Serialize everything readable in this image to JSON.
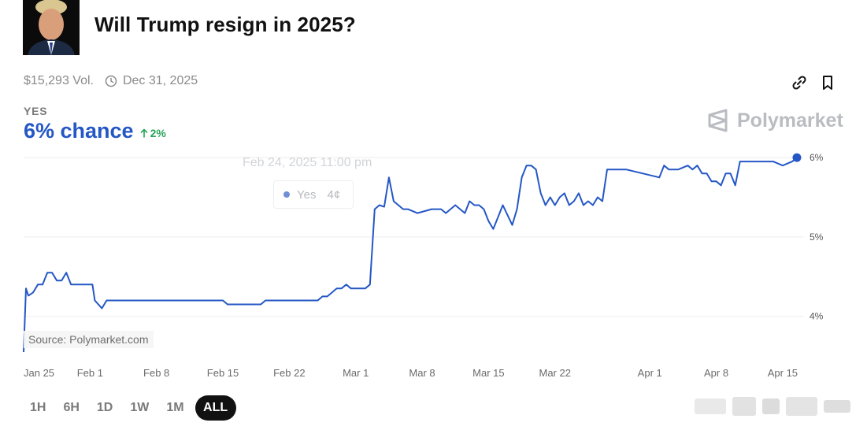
{
  "market": {
    "title": "Will Trump resign in 2025?",
    "volume": "$15,293 Vol.",
    "end_date": "Dec 31, 2025",
    "outcome_label": "YES",
    "chance": "6% chance",
    "change": "2%",
    "watermark": "Polymarket",
    "source": "Source: Polymarket.com"
  },
  "icons": {
    "clock": "clock-icon",
    "link": "link-icon",
    "bookmark": "bookmark-icon",
    "trend_up": "arrow-up-icon",
    "logo": "polymarket-logo-icon"
  },
  "tooltip": {
    "date": "Feb 24, 2025 11:00 pm",
    "series": "Yes",
    "value": "4¢"
  },
  "timerange": {
    "options": [
      "1H",
      "6H",
      "1D",
      "1W",
      "1M",
      "ALL"
    ],
    "selected": "ALL"
  },
  "colors": {
    "line": "#2457c5",
    "chance": "#2457c5",
    "change": "#27a55a",
    "grid": "#eeeeee"
  },
  "chart_data": {
    "type": "line",
    "title": "",
    "xlabel": "",
    "ylabel": "",
    "ylim": [
      3.5,
      6.1
    ],
    "grid": true,
    "y_ticks": [
      {
        "value": 6,
        "label": "6%"
      },
      {
        "value": 5,
        "label": "5%"
      },
      {
        "value": 4,
        "label": "4%"
      }
    ],
    "x_ticks": [
      {
        "value": "2025-01-25",
        "label": "Jan 25"
      },
      {
        "value": "2025-02-01",
        "label": "Feb 1"
      },
      {
        "value": "2025-02-08",
        "label": "Feb 8"
      },
      {
        "value": "2025-02-15",
        "label": "Feb 15"
      },
      {
        "value": "2025-02-22",
        "label": "Feb 22"
      },
      {
        "value": "2025-03-01",
        "label": "Mar 1"
      },
      {
        "value": "2025-03-08",
        "label": "Mar 8"
      },
      {
        "value": "2025-03-15",
        "label": "Mar 15"
      },
      {
        "value": "2025-03-22",
        "label": "Mar 22"
      },
      {
        "value": "2025-04-01",
        "label": "Apr 1"
      },
      {
        "value": "2025-04-08",
        "label": "Apr 8"
      },
      {
        "value": "2025-04-15",
        "label": "Apr 15"
      }
    ],
    "xlim": [
      "2025-01-25",
      "2025-04-17"
    ],
    "series": [
      {
        "x": [
          "2025-01-25 00:00",
          "2025-01-25 06:00",
          "2025-01-25 12:00",
          "2025-01-26 00:00",
          "2025-01-26 12:00",
          "2025-01-27 00:00",
          "2025-01-27 12:00",
          "2025-01-28 00:00",
          "2025-01-28 12:00",
          "2025-01-29 00:00",
          "2025-01-29 12:00",
          "2025-01-30 00:00",
          "2025-01-30 12:00",
          "2025-02-01 06:00",
          "2025-02-01 12:00",
          "2025-02-02 06:00",
          "2025-02-02 18:00",
          "2025-02-04 00:00",
          "2025-02-15 00:00",
          "2025-02-15 12:00",
          "2025-02-19 00:00",
          "2025-02-19 12:00",
          "2025-02-25 00:00",
          "2025-02-25 12:00",
          "2025-02-26 00:00",
          "2025-02-26 12:00",
          "2025-02-27 00:00",
          "2025-02-27 12:00",
          "2025-02-28 00:00",
          "2025-02-28 12:00",
          "2025-03-02 00:00",
          "2025-03-02 12:00",
          "2025-03-03 00:00",
          "2025-03-03 12:00",
          "2025-03-04 00:00",
          "2025-03-04 12:00",
          "2025-03-05 00:00",
          "2025-03-05 12:00",
          "2025-03-06 00:00",
          "2025-03-06 12:00",
          "2025-03-07 12:00",
          "2025-03-09 00:00",
          "2025-03-10 00:00",
          "2025-03-10 12:00",
          "2025-03-11 12:00",
          "2025-03-12 12:00",
          "2025-03-13 00:00",
          "2025-03-13 12:00",
          "2025-03-14 00:00",
          "2025-03-14 12:00",
          "2025-03-15 00:00",
          "2025-03-15 12:00",
          "2025-03-16 12:00",
          "2025-03-17 12:00",
          "2025-03-18 00:00",
          "2025-03-18 12:00",
          "2025-03-19 00:00",
          "2025-03-19 12:00",
          "2025-03-20 00:00",
          "2025-03-20 12:00",
          "2025-03-21 00:00",
          "2025-03-21 12:00",
          "2025-03-22 00:00",
          "2025-03-22 12:00",
          "2025-03-23 00:00",
          "2025-03-23 12:00",
          "2025-03-24 00:00",
          "2025-03-24 12:00",
          "2025-03-25 00:00",
          "2025-03-25 12:00",
          "2025-03-26 00:00",
          "2025-03-26 12:00",
          "2025-03-27 00:00",
          "2025-03-27 12:00",
          "2025-03-28 00:00",
          "2025-03-28 12:00",
          "2025-03-29 00:00",
          "2025-03-29 12:00",
          "2025-04-02 00:00",
          "2025-04-02 12:00",
          "2025-04-03 00:00",
          "2025-04-04 00:00",
          "2025-04-05 00:00",
          "2025-04-05 12:00",
          "2025-04-06 00:00",
          "2025-04-06 12:00",
          "2025-04-07 00:00",
          "2025-04-07 12:00",
          "2025-04-08 00:00",
          "2025-04-08 12:00",
          "2025-04-09 00:00",
          "2025-04-09 12:00",
          "2025-04-10 00:00",
          "2025-04-10 12:00",
          "2025-04-11 00:00",
          "2025-04-11 12:00",
          "2025-04-12 00:00",
          "2025-04-14 00:00",
          "2025-04-15 00:00",
          "2025-04-16 00:00",
          "2025-04-16 12:00"
        ],
        "y": [
          3.55,
          4.35,
          4.26,
          4.3,
          4.4,
          4.4,
          4.55,
          4.55,
          4.45,
          4.45,
          4.55,
          4.4,
          4.4,
          4.4,
          4.2,
          4.1,
          4.2,
          4.2,
          4.2,
          4.15,
          4.15,
          4.2,
          4.2,
          4.25,
          4.25,
          4.3,
          4.35,
          4.35,
          4.4,
          4.35,
          4.35,
          4.4,
          5.35,
          5.4,
          5.38,
          5.75,
          5.45,
          5.4,
          5.35,
          5.35,
          5.3,
          5.35,
          5.35,
          5.3,
          5.4,
          5.3,
          5.45,
          5.4,
          5.4,
          5.35,
          5.2,
          5.1,
          5.4,
          5.15,
          5.35,
          5.75,
          5.9,
          5.9,
          5.85,
          5.55,
          5.4,
          5.5,
          5.4,
          5.5,
          5.55,
          5.4,
          5.45,
          5.55,
          5.4,
          5.45,
          5.4,
          5.5,
          5.45,
          5.85,
          5.85,
          5.85,
          5.85,
          5.85,
          5.75,
          5.9,
          5.85,
          5.85,
          5.9,
          5.85,
          5.9,
          5.8,
          5.8,
          5.7,
          5.7,
          5.65,
          5.8,
          5.8,
          5.65,
          5.95,
          5.95,
          5.95,
          5.95,
          5.95,
          5.9,
          5.95,
          6.0
        ]
      }
    ]
  }
}
